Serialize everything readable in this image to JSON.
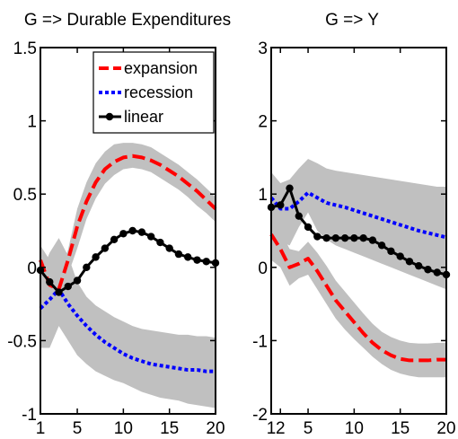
{
  "chart_data": [
    {
      "type": "line",
      "title": "G => Durable Expenditures",
      "xlim": [
        1,
        20
      ],
      "ylim": [
        -1,
        1.5
      ],
      "xticks": [
        1,
        5,
        10,
        15,
        20
      ],
      "yticks": [
        -1,
        -0.5,
        0,
        0.5,
        1,
        1.5
      ],
      "xtick_labels": [
        "1",
        "5",
        "10",
        "15",
        "20"
      ],
      "ytick_labels": [
        "-1",
        "-0.5",
        "0",
        "0.5",
        "1",
        "1.5"
      ],
      "legend": {
        "position": "top-right",
        "entries": [
          "expansion",
          "recession",
          "linear"
        ]
      },
      "x": [
        1,
        2,
        3,
        4,
        5,
        6,
        7,
        8,
        9,
        10,
        11,
        12,
        13,
        14,
        15,
        16,
        17,
        18,
        19,
        20
      ],
      "series": [
        {
          "name": "expansion",
          "color": "#ff0000",
          "style": "dashed",
          "values": [
            0.05,
            -0.12,
            -0.15,
            0.05,
            0.28,
            0.45,
            0.58,
            0.67,
            0.72,
            0.75,
            0.76,
            0.75,
            0.73,
            0.7,
            0.66,
            0.62,
            0.57,
            0.52,
            0.46,
            0.4
          ]
        },
        {
          "name": "recession",
          "color": "#0000ff",
          "style": "dotted",
          "values": [
            -0.28,
            -0.22,
            -0.15,
            -0.25,
            -0.33,
            -0.4,
            -0.46,
            -0.51,
            -0.55,
            -0.59,
            -0.62,
            -0.64,
            -0.66,
            -0.67,
            -0.68,
            -0.69,
            -0.7,
            -0.7,
            -0.71,
            -0.71
          ]
        },
        {
          "name": "linear",
          "color": "#000000",
          "style": "solid-markers",
          "values": [
            -0.02,
            -0.1,
            -0.17,
            -0.13,
            -0.09,
            0.0,
            0.07,
            0.13,
            0.19,
            0.23,
            0.25,
            0.24,
            0.21,
            0.17,
            0.13,
            0.09,
            0.07,
            0.05,
            0.04,
            0.03
          ]
        }
      ],
      "bands": [
        {
          "color": "#c0c0c0",
          "lower": [
            -0.05,
            -0.18,
            -0.2,
            -0.05,
            0.13,
            0.33,
            0.47,
            0.57,
            0.63,
            0.67,
            0.68,
            0.67,
            0.65,
            0.61,
            0.57,
            0.53,
            0.48,
            0.42,
            0.37,
            0.31
          ],
          "upper": [
            0.15,
            0.05,
            -0.05,
            0.12,
            0.4,
            0.58,
            0.71,
            0.79,
            0.84,
            0.85,
            0.85,
            0.84,
            0.82,
            0.78,
            0.74,
            0.7,
            0.65,
            0.6,
            0.54,
            0.48
          ]
        },
        {
          "color": "#c0c0c0",
          "lower": [
            -0.55,
            -0.55,
            -0.4,
            -0.5,
            -0.6,
            -0.66,
            -0.71,
            -0.74,
            -0.77,
            -0.79,
            -0.82,
            -0.85,
            -0.87,
            -0.89,
            -0.9,
            -0.91,
            -0.93,
            -0.94,
            -0.95,
            -0.96
          ],
          "upper": [
            -0.05,
            0.1,
            0.2,
            0.08,
            -0.1,
            -0.2,
            -0.26,
            -0.3,
            -0.34,
            -0.37,
            -0.4,
            -0.42,
            -0.43,
            -0.44,
            -0.45,
            -0.46,
            -0.46,
            -0.47,
            -0.47,
            -0.48
          ]
        }
      ]
    },
    {
      "type": "line",
      "title": "G => Y",
      "xlim": [
        1,
        20
      ],
      "ylim": [
        -2,
        3
      ],
      "xticks": [
        1,
        2,
        5,
        10,
        15,
        20
      ],
      "yticks": [
        -2,
        -1,
        0,
        1,
        2,
        3
      ],
      "xtick_labels": [
        "1",
        "2",
        "5",
        "10",
        "15",
        "20"
      ],
      "ytick_labels": [
        "-2",
        "-1",
        "0",
        "1",
        "2",
        "3"
      ],
      "x": [
        1,
        2,
        3,
        4,
        5,
        6,
        7,
        8,
        9,
        10,
        11,
        12,
        13,
        14,
        15,
        16,
        17,
        18,
        19,
        20
      ],
      "series": [
        {
          "name": "expansion",
          "color": "#ff0000",
          "style": "dashed",
          "values": [
            0.45,
            0.25,
            0.0,
            0.05,
            0.12,
            -0.05,
            -0.25,
            -0.45,
            -0.6,
            -0.75,
            -0.9,
            -1.03,
            -1.13,
            -1.2,
            -1.25,
            -1.27,
            -1.27,
            -1.27,
            -1.26,
            -1.26
          ]
        },
        {
          "name": "recession",
          "color": "#0000ff",
          "style": "dotted",
          "values": [
            0.95,
            0.8,
            0.8,
            0.9,
            1.02,
            0.95,
            0.88,
            0.85,
            0.82,
            0.78,
            0.74,
            0.7,
            0.66,
            0.62,
            0.58,
            0.54,
            0.5,
            0.47,
            0.44,
            0.41
          ]
        },
        {
          "name": "linear",
          "color": "#000000",
          "style": "solid-markers",
          "values": [
            0.82,
            0.85,
            1.08,
            0.7,
            0.55,
            0.42,
            0.4,
            0.4,
            0.4,
            0.4,
            0.4,
            0.37,
            0.3,
            0.22,
            0.15,
            0.08,
            0.02,
            -0.03,
            -0.07,
            -0.1
          ]
        }
      ],
      "bands": [
        {
          "color": "#c0c0c0",
          "lower": [
            0.6,
            0.35,
            0.3,
            0.55,
            0.75,
            0.5,
            0.38,
            0.3,
            0.25,
            0.2,
            0.15,
            0.1,
            0.05,
            0.0,
            -0.05,
            -0.1,
            -0.15,
            -0.2,
            -0.25,
            -0.3
          ],
          "upper": [
            1.3,
            1.15,
            1.2,
            1.35,
            1.48,
            1.42,
            1.35,
            1.32,
            1.3,
            1.28,
            1.26,
            1.24,
            1.22,
            1.2,
            1.18,
            1.16,
            1.14,
            1.12,
            1.1,
            1.1
          ]
        },
        {
          "color": "#c0c0c0",
          "lower": [
            0.1,
            0.0,
            -0.25,
            -0.15,
            -0.1,
            -0.3,
            -0.5,
            -0.7,
            -0.85,
            -0.98,
            -1.1,
            -1.22,
            -1.32,
            -1.4,
            -1.45,
            -1.48,
            -1.5,
            -1.5,
            -1.5,
            -1.5
          ],
          "upper": [
            0.75,
            0.5,
            0.25,
            0.22,
            0.35,
            0.2,
            0.02,
            -0.18,
            -0.33,
            -0.48,
            -0.63,
            -0.77,
            -0.88,
            -0.95,
            -1.0,
            -1.03,
            -1.04,
            -1.04,
            -1.03,
            -1.03
          ]
        }
      ]
    }
  ]
}
